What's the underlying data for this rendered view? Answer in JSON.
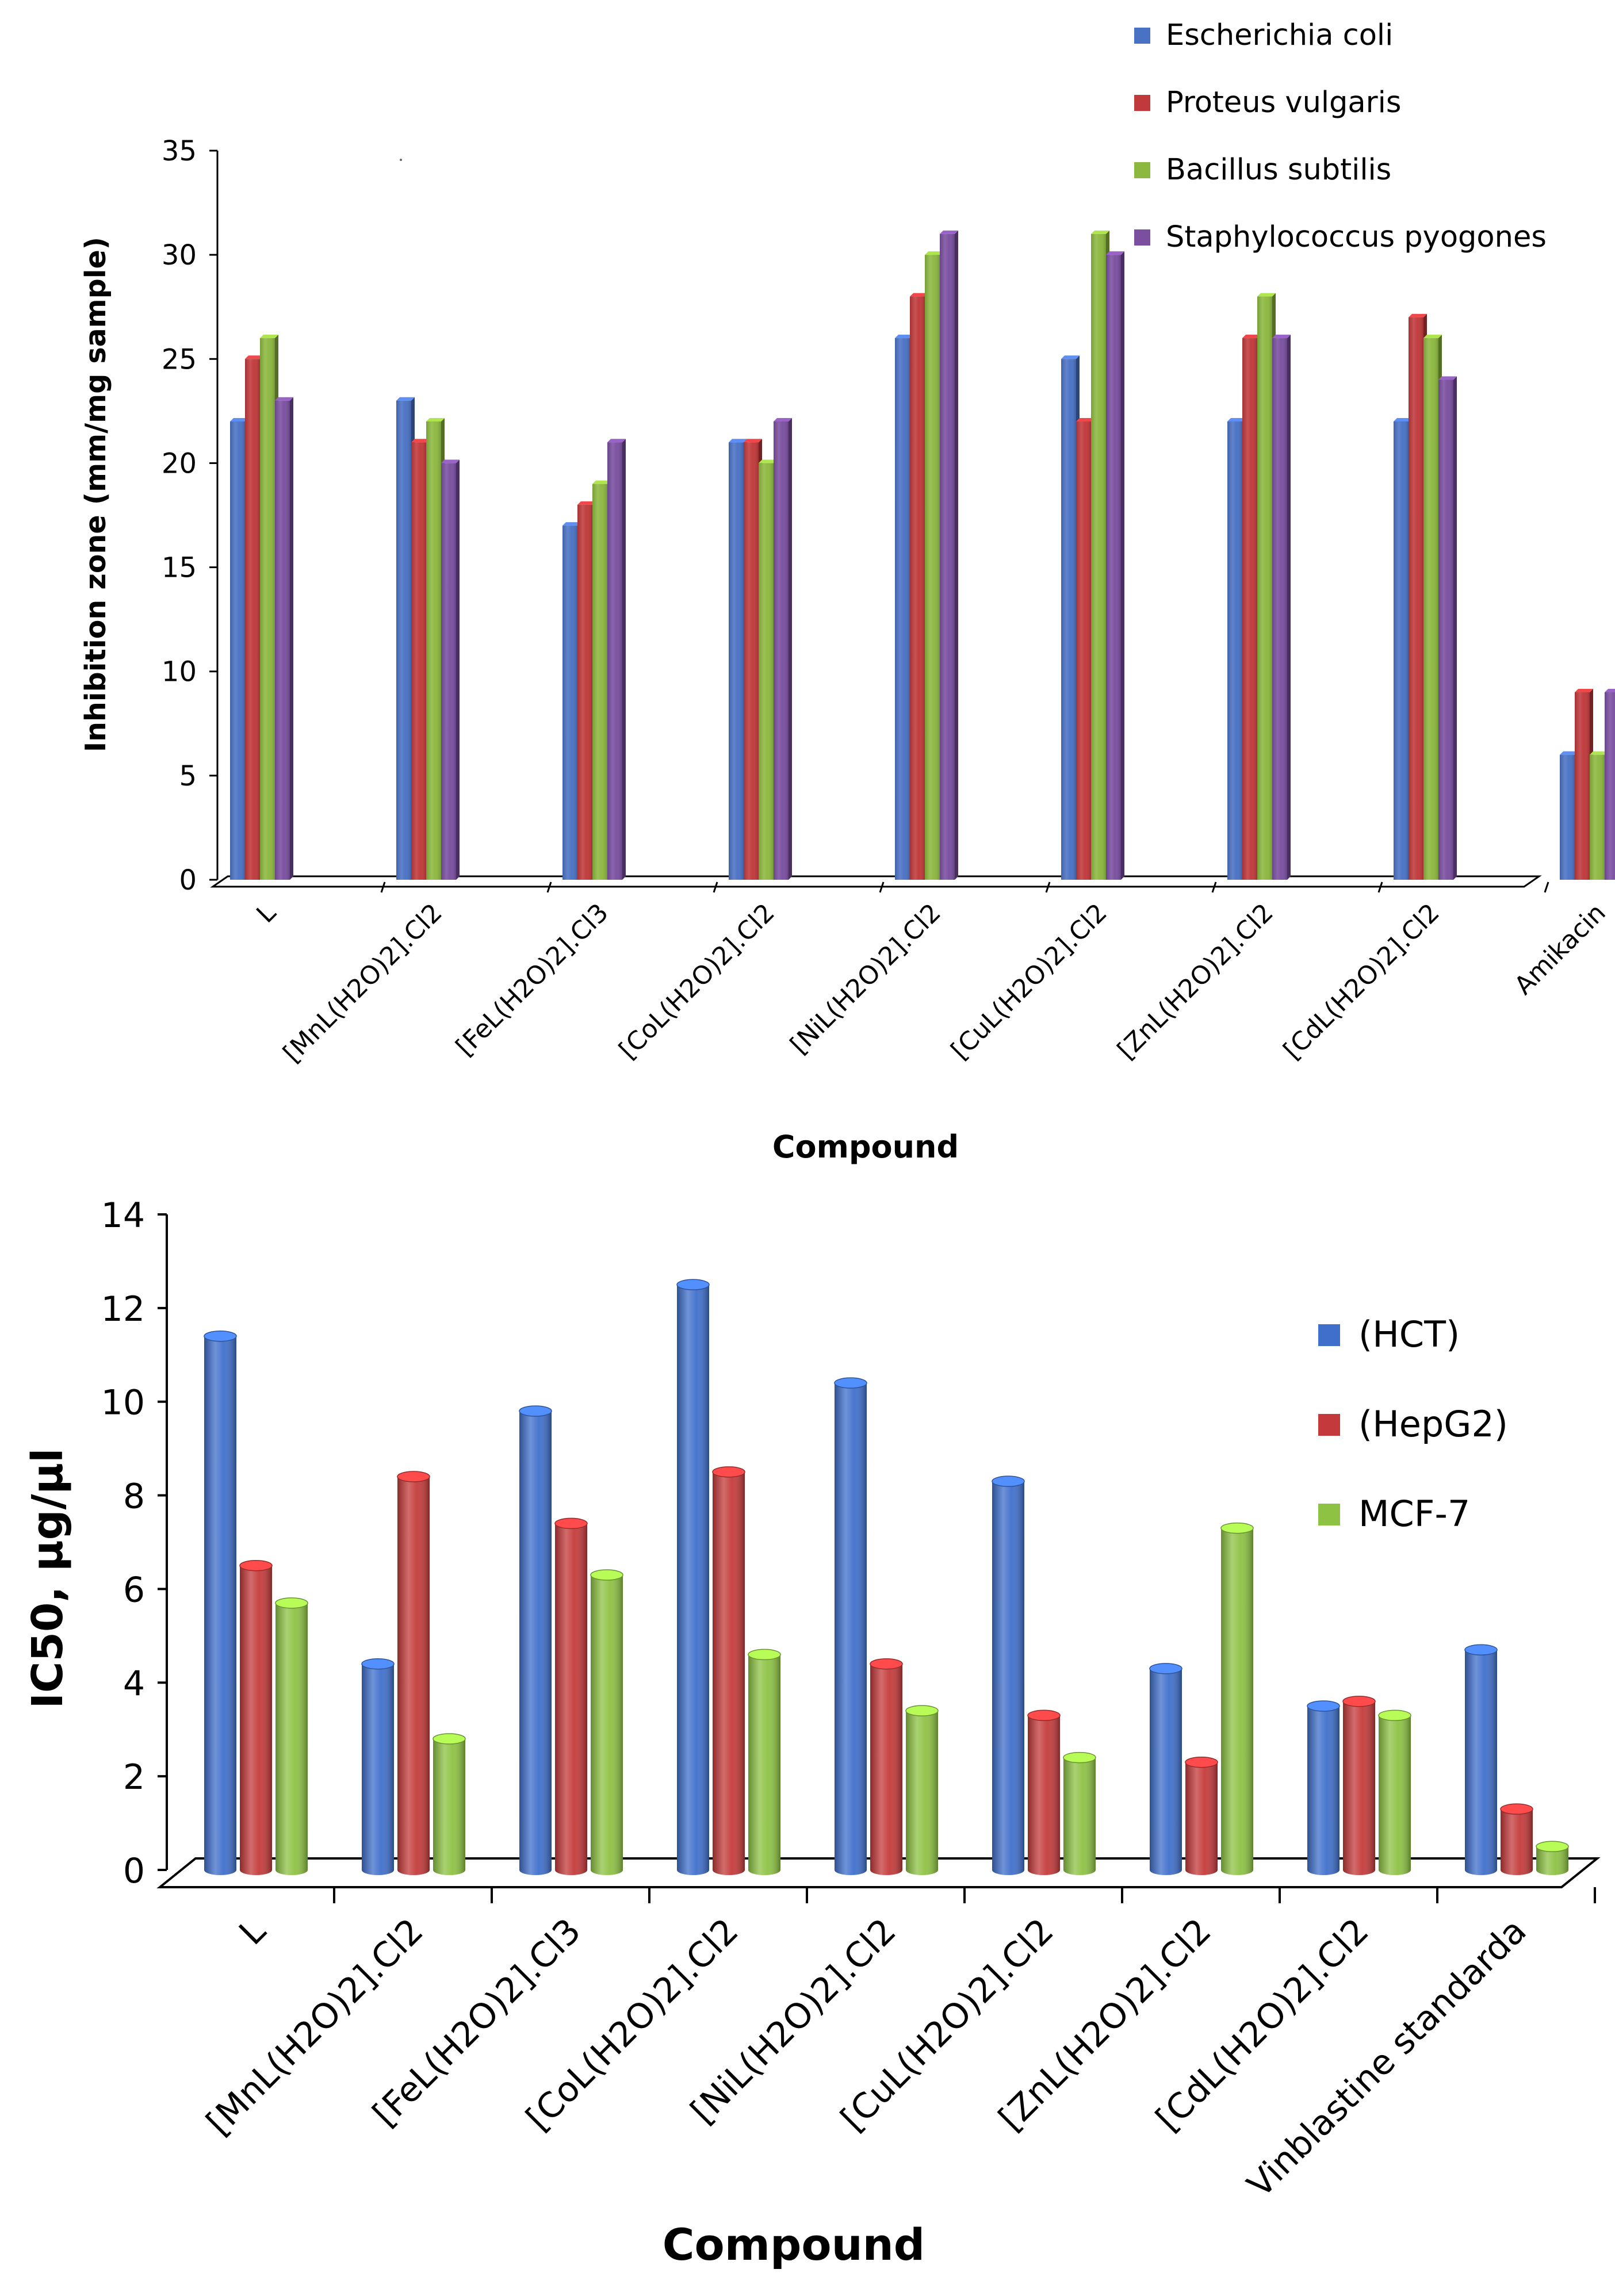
{
  "chart_data": [
    {
      "type": "bar",
      "title": "",
      "xlabel": "Compound",
      "ylabel": "Inhibition zone (mm/mg sample)",
      "ylim": [
        0,
        35
      ],
      "yticks": [
        0,
        5,
        10,
        15,
        20,
        25,
        30,
        35
      ],
      "grid": false,
      "legend_position": "top-right",
      "categories": [
        "L",
        "[MnL(H2O)2].Cl2",
        "[FeL(H2O)2].Cl3",
        "[CoL(H2O)2].Cl2",
        "[NiL(H2O)2].Cl2",
        "[CuL(H2O)2].Cl2",
        "[ZnL(H2O)2].Cl2",
        "[CdL(H2O)2].Cl2",
        "Amikacin"
      ],
      "series": [
        {
          "name": "Escherichia coli",
          "color": "#4A72C4",
          "values": [
            22,
            23,
            17,
            21,
            26,
            25,
            22,
            22,
            6
          ]
        },
        {
          "name": "Proteus vulgaris",
          "color": "#C0393B",
          "values": [
            25,
            21,
            18,
            21,
            28,
            22,
            26,
            27,
            9
          ]
        },
        {
          "name": "Bacillus subtilis",
          "color": "#8CB83F",
          "values": [
            26,
            22,
            19,
            20,
            30,
            31,
            28,
            26,
            6
          ]
        },
        {
          "name": "Staphylococcus pyogones",
          "color": "#7A4FA0",
          "values": [
            23,
            20,
            21,
            22,
            31,
            30,
            26,
            24,
            9
          ]
        }
      ]
    },
    {
      "type": "bar",
      "title": "",
      "xlabel": "Compound",
      "ylabel": "IC50, µg/µl",
      "ylim": [
        0,
        14
      ],
      "yticks": [
        0,
        2,
        4,
        6,
        8,
        10,
        12,
        14
      ],
      "grid": false,
      "legend_position": "right",
      "categories": [
        "L",
        "[MnL(H2O)2].Cl2",
        "[FeL(H2O)2].Cl3",
        "[CoL(H2O)2].Cl2",
        "[NiL(H2O)2].Cl2",
        "[CuL(H2O)2].Cl2",
        "[ZnL(H2O)2].Cl2",
        "[CdL(H2O)2].Cl2",
        "Vinblastine standarda"
      ],
      "series": [
        {
          "name": "(HCT)",
          "color": "#3F6FCB",
          "values": [
            11.4,
            4.4,
            9.8,
            12.5,
            10.4,
            8.3,
            4.3,
            3.5,
            4.7
          ]
        },
        {
          "name": "(HepG2)",
          "color": "#C43A3A",
          "values": [
            6.5,
            8.4,
            7.4,
            8.5,
            4.4,
            3.3,
            2.3,
            3.6,
            1.3
          ]
        },
        {
          "name": "MCF-7",
          "color": "#8DC243",
          "values": [
            5.7,
            2.8,
            6.3,
            4.6,
            3.4,
            2.4,
            7.3,
            3.3,
            0.5
          ]
        }
      ]
    }
  ]
}
